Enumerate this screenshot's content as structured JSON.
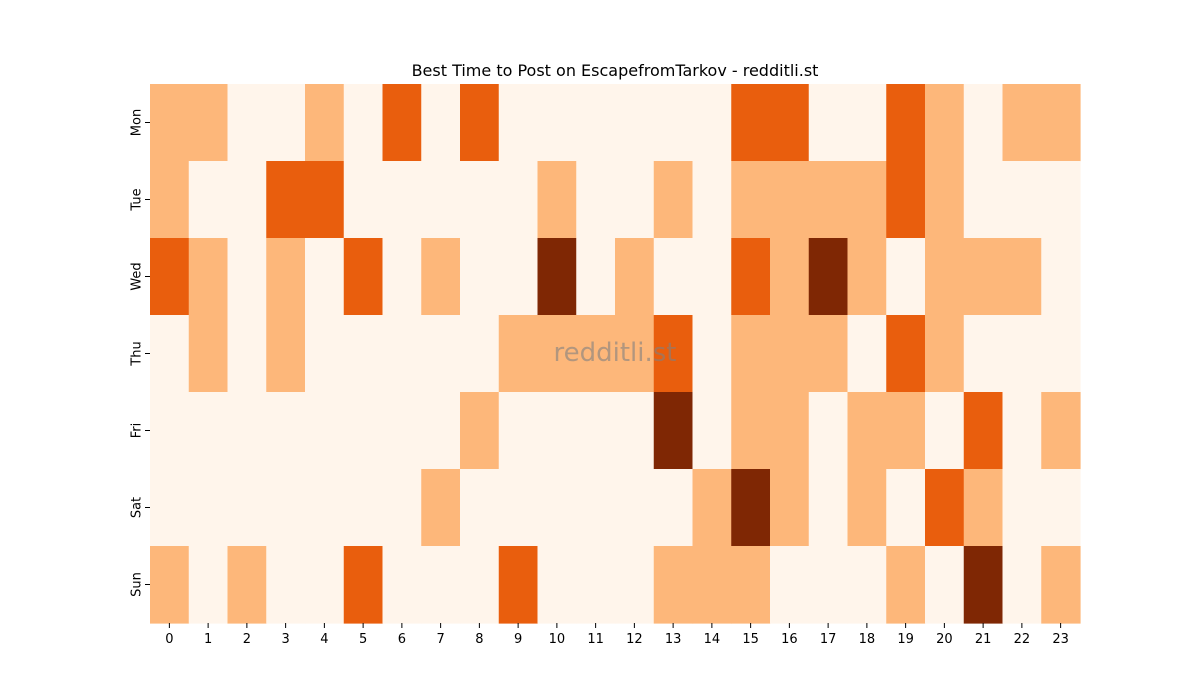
{
  "chart_data": {
    "type": "heatmap",
    "title": "Best Time to Post on EscapefromTarkov - redditli.st",
    "watermark": "redditli.st",
    "xlabel": "",
    "ylabel": "",
    "x_categories": [
      "0",
      "1",
      "2",
      "3",
      "4",
      "5",
      "6",
      "7",
      "8",
      "9",
      "10",
      "11",
      "12",
      "13",
      "14",
      "15",
      "16",
      "17",
      "18",
      "19",
      "20",
      "21",
      "22",
      "23"
    ],
    "y_categories": [
      "Mon",
      "Tue",
      "Wed",
      "Thu",
      "Fri",
      "Sat",
      "Sun"
    ],
    "values": [
      [
        1,
        1,
        0,
        0,
        1,
        0,
        2,
        0,
        2,
        0,
        0,
        0,
        0,
        0,
        0,
        2,
        2,
        0,
        0,
        2,
        1,
        0,
        1,
        1
      ],
      [
        1,
        0,
        0,
        2,
        2,
        0,
        0,
        0,
        0,
        0,
        1,
        0,
        0,
        1,
        0,
        1,
        1,
        1,
        1,
        2,
        1,
        0,
        0,
        0
      ],
      [
        2,
        1,
        0,
        1,
        0,
        2,
        0,
        1,
        0,
        0,
        3,
        0,
        1,
        0,
        0,
        2,
        1,
        3,
        1,
        0,
        1,
        1,
        1,
        0
      ],
      [
        0,
        1,
        0,
        1,
        0,
        0,
        0,
        0,
        0,
        1,
        1,
        1,
        1,
        2,
        0,
        1,
        1,
        1,
        0,
        2,
        1,
        0,
        0,
        0
      ],
      [
        0,
        0,
        0,
        0,
        0,
        0,
        0,
        0,
        1,
        0,
        0,
        0,
        0,
        3,
        0,
        1,
        1,
        0,
        1,
        1,
        0,
        2,
        0,
        1
      ],
      [
        0,
        0,
        0,
        0,
        0,
        0,
        0,
        1,
        0,
        0,
        0,
        0,
        0,
        0,
        1,
        3,
        1,
        0,
        1,
        0,
        2,
        1,
        0,
        0
      ],
      [
        1,
        0,
        1,
        0,
        0,
        2,
        0,
        0,
        0,
        2,
        0,
        0,
        0,
        1,
        1,
        1,
        0,
        0,
        0,
        1,
        0,
        3,
        0,
        1
      ]
    ],
    "value_range": [
      0,
      3
    ],
    "colormap": "Oranges",
    "level_colors": [
      "#fff5eb",
      "#fdb77a",
      "#e95e0d",
      "#7f2704"
    ],
    "grid": false,
    "legend": "none"
  }
}
